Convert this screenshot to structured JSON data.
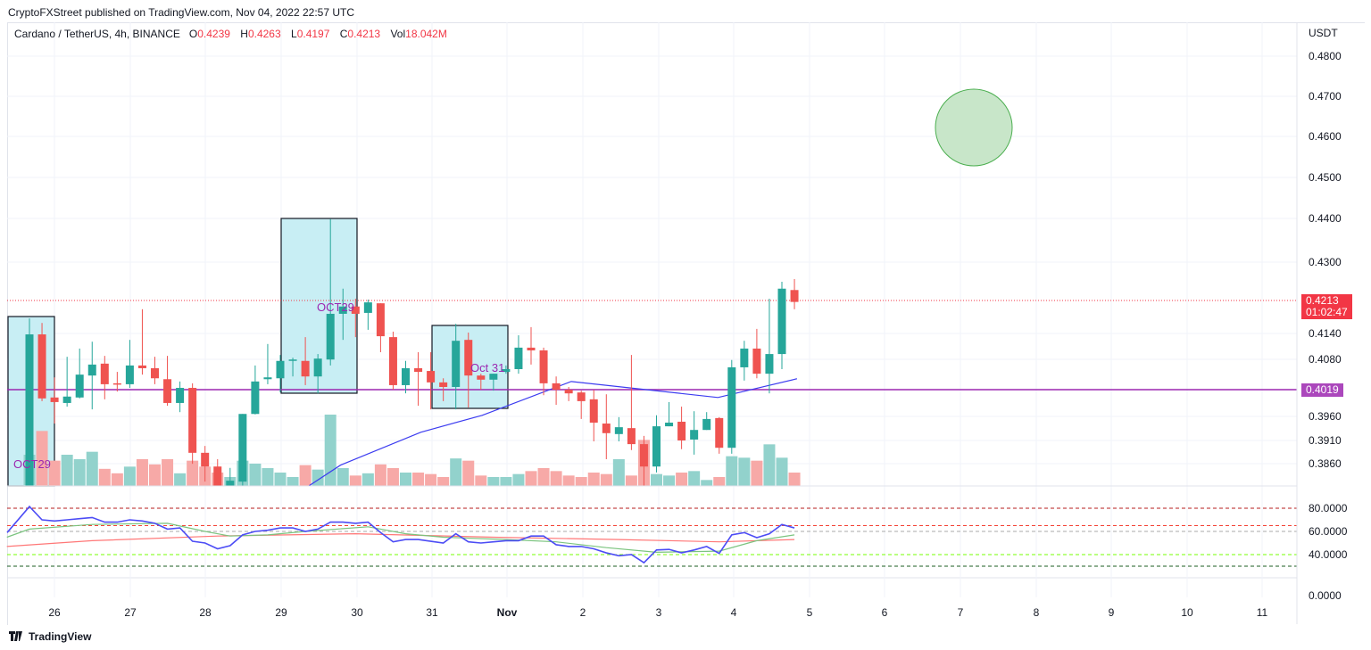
{
  "header": {
    "published": "CryptoFXStreet published on TradingView.com, Nov 04, 2022 22:57 UTC"
  },
  "legend": {
    "symbol": "Cardano / TetherUS, 4h, BINANCE",
    "o_label": "O",
    "o": "0.4239",
    "h_label": "H",
    "h": "0.4263",
    "l_label": "L",
    "l": "0.4197",
    "c_label": "C",
    "c": "0.4213",
    "vol_label": "Vol",
    "vol": "18.042M"
  },
  "axis": {
    "currency": "USDT",
    "price_ticks": [
      "0.4800",
      "0.4700",
      "0.4600",
      "0.4500",
      "0.4400",
      "0.4300",
      "0.4140",
      "0.4080",
      "0.3960",
      "0.3910",
      "0.3860"
    ],
    "rsi_ticks": [
      "80.0000",
      "60.0000",
      "40.0000",
      "0.0000"
    ],
    "date_ticks": [
      "26",
      "27",
      "28",
      "29",
      "30",
      "31",
      "Nov",
      "2",
      "3",
      "4",
      "5",
      "6",
      "7",
      "8",
      "9",
      "10",
      "11"
    ]
  },
  "tags": {
    "last_price": "0.4213",
    "countdown": "01:02:47",
    "level": "0.4019"
  },
  "annotations": {
    "box1_label": "OCT29",
    "box2_label": "OCT29",
    "box3_label": "Oct 31"
  },
  "footer": {
    "brand": "TradingView"
  },
  "colors": {
    "up": "#26a69a",
    "down": "#ef5350",
    "level": "#9c27b0",
    "ma": "#3c3cf0",
    "box": "#c8eef4",
    "circle": "#c8e6c9"
  },
  "chart_data": {
    "type": "candlestick",
    "title": "Cardano / TetherUS, 4h, BINANCE",
    "ylabel": "USDT",
    "horizontal_level": 0.4019,
    "last_price": 0.4213,
    "ohlc": [
      [
        0.3811,
        0.4177,
        0.3811,
        0.4142
      ],
      [
        0.4142,
        0.4167,
        0.3996,
        0.4002
      ],
      [
        0.4004,
        0.4048,
        0.3947,
        0.3994
      ],
      [
        0.3992,
        0.4093,
        0.3984,
        0.4006
      ],
      [
        0.4004,
        0.4111,
        0.4002,
        0.4054
      ],
      [
        0.4052,
        0.4126,
        0.3978,
        0.4076
      ],
      [
        0.4078,
        0.4095,
        0.4,
        0.4033
      ],
      [
        0.4035,
        0.406,
        0.4017,
        0.4033
      ],
      [
        0.4033,
        0.413,
        0.4025,
        0.4074
      ],
      [
        0.4074,
        0.4197,
        0.4054,
        0.4068
      ],
      [
        0.4068,
        0.4093,
        0.4033,
        0.4046
      ],
      [
        0.4044,
        0.4095,
        0.3986,
        0.3992
      ],
      [
        0.3992,
        0.4039,
        0.3972,
        0.4025
      ],
      [
        0.4025,
        0.4035,
        0.3859,
        0.3883
      ],
      [
        0.3883,
        0.3898,
        0.382,
        0.3853
      ],
      [
        0.3853,
        0.3869,
        0.3811,
        0.3811
      ],
      [
        0.3811,
        0.385,
        0.3811,
        0.3822
      ],
      [
        0.382,
        0.3968,
        0.3811,
        0.3968
      ],
      [
        0.3968,
        0.4074,
        0.3967,
        0.4039
      ],
      [
        0.4044,
        0.4121,
        0.4033,
        0.4048
      ],
      [
        0.4046,
        0.4097,
        0.4015,
        0.4084
      ],
      [
        0.4086,
        0.4091,
        0.405,
        0.4087
      ],
      [
        0.4084,
        0.4136,
        0.4031,
        0.405
      ],
      [
        0.405,
        0.4099,
        0.4013,
        0.4089
      ],
      [
        0.4087,
        0.4394,
        0.4074,
        0.4187
      ],
      [
        0.4187,
        0.4242,
        0.413,
        0.4203
      ],
      [
        0.4203,
        0.422,
        0.4136,
        0.4187
      ],
      [
        0.4189,
        0.4218,
        0.4152,
        0.4212
      ],
      [
        0.421,
        0.421,
        0.4103,
        0.4138
      ],
      [
        0.4136,
        0.4148,
        0.4021,
        0.4031
      ],
      [
        0.4031,
        0.4084,
        0.4013,
        0.4068
      ],
      [
        0.4068,
        0.4103,
        0.3986,
        0.406
      ],
      [
        0.4062,
        0.4103,
        0.3978,
        0.4037
      ],
      [
        0.4037,
        0.4046,
        0.3996,
        0.4027
      ],
      [
        0.4027,
        0.4165,
        0.3978,
        0.4128
      ],
      [
        0.413,
        0.4146,
        0.3982,
        0.4052
      ],
      [
        0.4052,
        0.4056,
        0.4021,
        0.4043
      ],
      [
        0.4043,
        0.4056,
        0.4019,
        0.4056
      ],
      [
        0.406,
        0.4074,
        0.4056,
        0.4066
      ],
      [
        0.4066,
        0.414,
        0.4056,
        0.4113
      ],
      [
        0.4113,
        0.4158,
        0.4076,
        0.4107
      ],
      [
        0.4107,
        0.4113,
        0.4009,
        0.4035
      ],
      [
        0.4035,
        0.405,
        0.3988,
        0.4021
      ],
      [
        0.4021,
        0.4027,
        0.3996,
        0.4013
      ],
      [
        0.4015,
        0.4019,
        0.3957,
        0.3996
      ],
      [
        0.4,
        0.4021,
        0.3908,
        0.3949
      ],
      [
        0.3947,
        0.4011,
        0.3869,
        0.3926
      ],
      [
        0.3924,
        0.3961,
        0.3908,
        0.3939
      ],
      [
        0.3937,
        0.4097,
        0.3889,
        0.3902
      ],
      [
        0.3902,
        0.392,
        0.3811,
        0.3853
      ],
      [
        0.3853,
        0.3965,
        0.384,
        0.3941
      ],
      [
        0.3941,
        0.3994,
        0.3941,
        0.3949
      ],
      [
        0.3951,
        0.3984,
        0.3891,
        0.391
      ],
      [
        0.3912,
        0.3974,
        0.3879,
        0.3933
      ],
      [
        0.3933,
        0.3972,
        0.3933,
        0.3957
      ],
      [
        0.3959,
        0.3961,
        0.3881,
        0.3894
      ],
      [
        0.3894,
        0.4086,
        0.3881,
        0.407
      ],
      [
        0.407,
        0.4128,
        0.4041,
        0.4111
      ],
      [
        0.4111,
        0.4154,
        0.4046,
        0.4056
      ],
      [
        0.4056,
        0.422,
        0.4013,
        0.4099
      ],
      [
        0.4099,
        0.4257,
        0.4066,
        0.4242
      ],
      [
        0.4239,
        0.4263,
        0.4197,
        0.4213
      ]
    ],
    "volume_m": [
      42,
      74,
      34,
      42,
      36,
      46,
      23,
      17,
      26,
      36,
      29,
      36,
      17,
      34,
      26,
      18,
      12,
      34,
      30,
      24,
      18,
      12,
      28,
      22,
      96,
      24,
      14,
      17,
      29,
      24,
      18,
      18,
      16,
      12,
      37,
      34,
      14,
      12,
      12,
      16,
      20,
      24,
      20,
      14,
      12,
      18,
      16,
      36,
      14,
      62,
      16,
      14,
      18,
      20,
      8,
      12,
      40,
      38,
      34,
      56,
      38,
      18
    ],
    "ma_price": [
      [
        22.3,
        0.3811
      ],
      [
        24.8,
        0.3856
      ],
      [
        31.2,
        0.3928
      ],
      [
        36.1,
        0.3965
      ],
      [
        43.2,
        0.4039
      ],
      [
        54.9,
        0.4004
      ],
      [
        61.2,
        0.4045
      ]
    ],
    "rsi": [
      81.5,
      70,
      69,
      70,
      71,
      72,
      68,
      68,
      70,
      69,
      67,
      62,
      63,
      51.5,
      50,
      45,
      47.7,
      57,
      60,
      61,
      63,
      63,
      60,
      62,
      68,
      68,
      67,
      68,
      59,
      51,
      53,
      53,
      51.5,
      50,
      58,
      51,
      50,
      51,
      52,
      52,
      56,
      56,
      48.5,
      47,
      47,
      45,
      41.5,
      39,
      40,
      33,
      44,
      44.5,
      41.5,
      44,
      47,
      41,
      57,
      59,
      54.6,
      58,
      66,
      63
    ],
    "rsi_ma_green": [
      [
        -1.8,
        55
      ],
      [
        0,
        62
      ],
      [
        5,
        66
      ],
      [
        11,
        67
      ],
      [
        14,
        60
      ],
      [
        16,
        56
      ],
      [
        19,
        57
      ],
      [
        22,
        60
      ],
      [
        27,
        64
      ],
      [
        30,
        58
      ],
      [
        33,
        55
      ],
      [
        38,
        53
      ],
      [
        42,
        51
      ],
      [
        46,
        46
      ],
      [
        50,
        42
      ],
      [
        55,
        43
      ],
      [
        58,
        52
      ],
      [
        61,
        57
      ]
    ],
    "rsi_ma_red": [
      [
        -1.8,
        47
      ],
      [
        5,
        52
      ],
      [
        15,
        56
      ],
      [
        26,
        58
      ],
      [
        37,
        55
      ],
      [
        47,
        53
      ],
      [
        55,
        51
      ],
      [
        61,
        53
      ]
    ],
    "rsi_levels": [
      80,
      65,
      60,
      40,
      30
    ],
    "rsi_ylim": [
      0,
      100
    ]
  }
}
